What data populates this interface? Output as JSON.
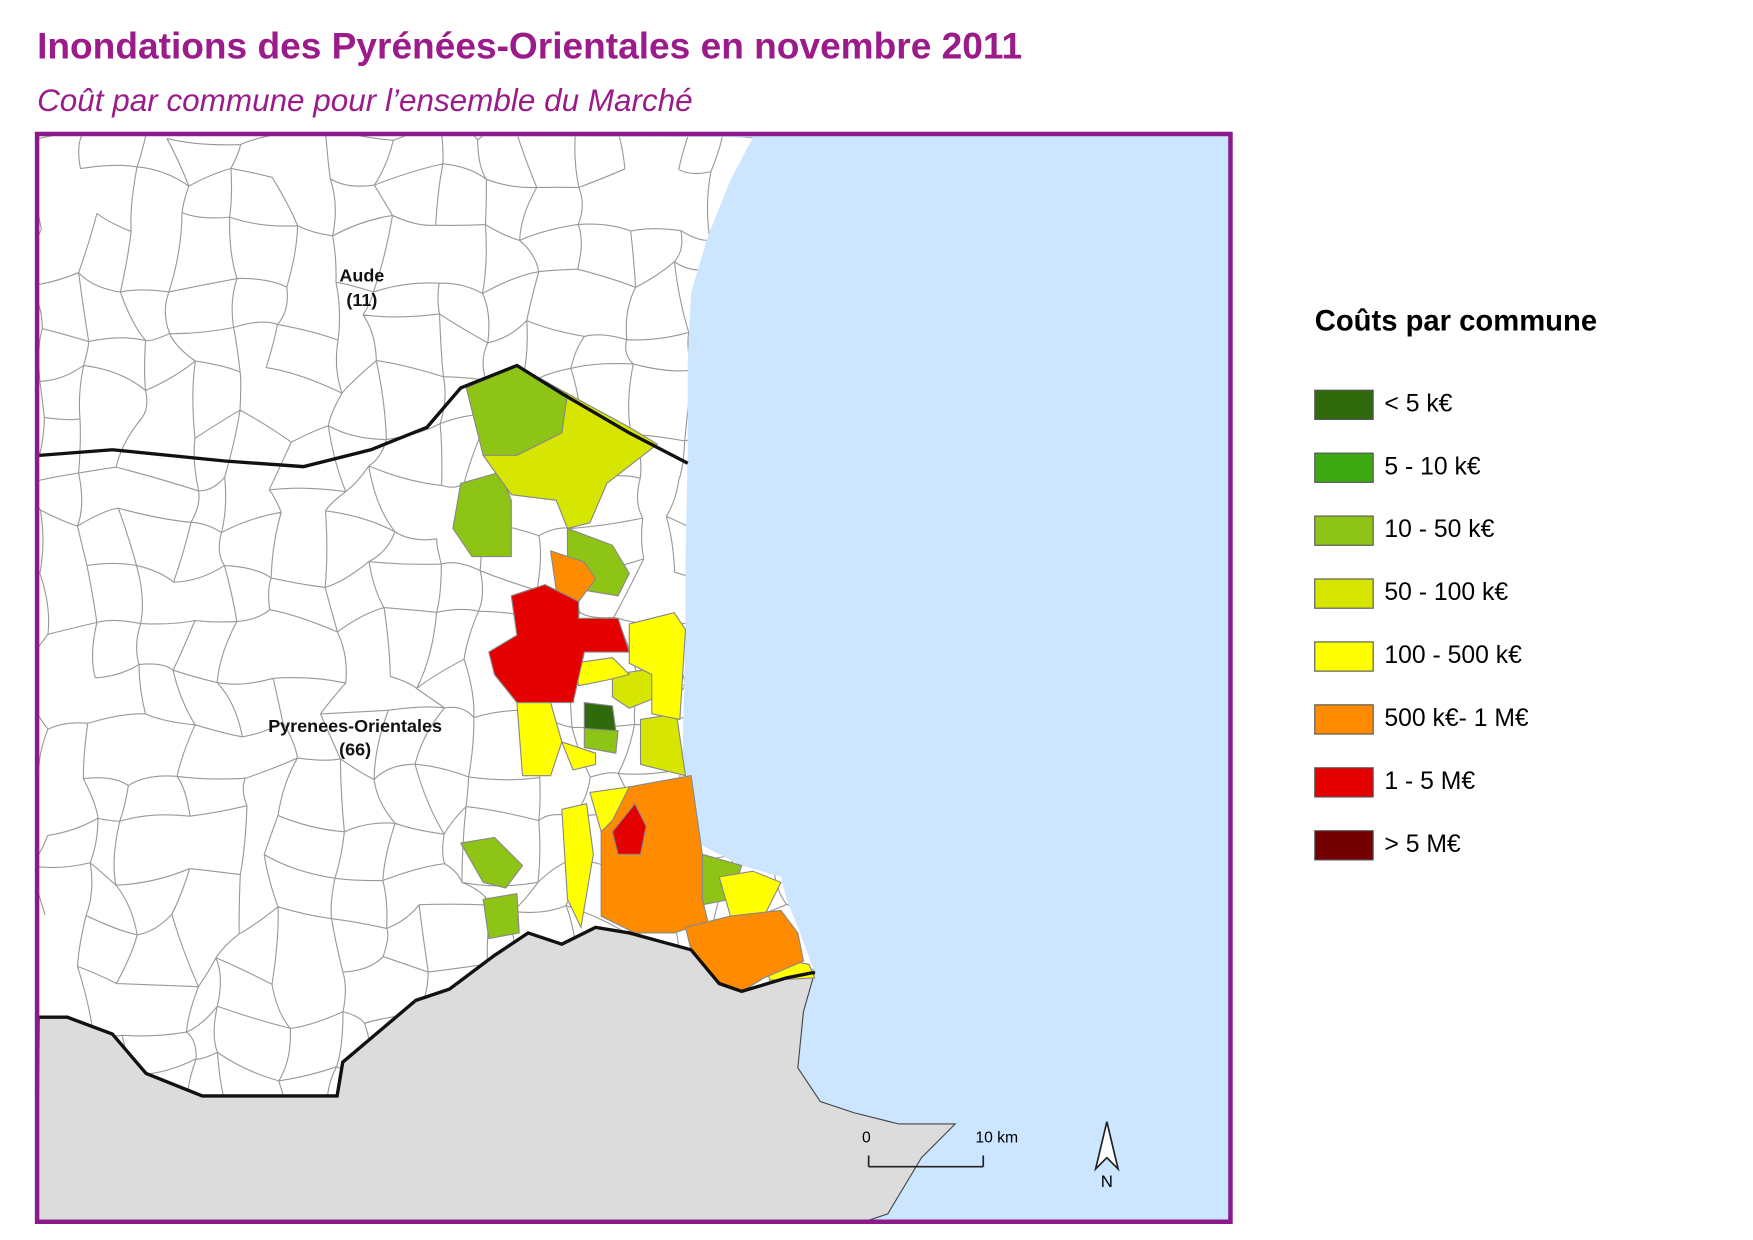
{
  "header": {
    "title": "Inondations des Pyrénées-Orientales en novembre 2011",
    "subtitle": "Coût par commune pour l’ensemble du Marché"
  },
  "map": {
    "labels": [
      {
        "name": "Aude",
        "code": "(11)"
      },
      {
        "name": "Pyrenees-Orientales",
        "code": "(66)"
      }
    ],
    "scale_bar": {
      "start": "0",
      "end": "10 km"
    },
    "north": "N"
  },
  "legend": {
    "title": "Coûts par commune",
    "items": [
      {
        "label": "< 5 k€",
        "color": "#2f6b0c"
      },
      {
        "label": "5 - 10 k€",
        "color": "#3ca812"
      },
      {
        "label": "10 - 50 k€",
        "color": "#8dc416"
      },
      {
        "label": "50 - 100 k€",
        "color": "#d6e600"
      },
      {
        "label": "100 - 500 k€",
        "color": "#ffff00"
      },
      {
        "label": "500 k€- 1 M€",
        "color": "#ff8c00"
      },
      {
        "label": "1 - 5 M€",
        "color": "#e50000"
      },
      {
        "label": "> 5 M€",
        "color": "#730000"
      }
    ]
  }
}
